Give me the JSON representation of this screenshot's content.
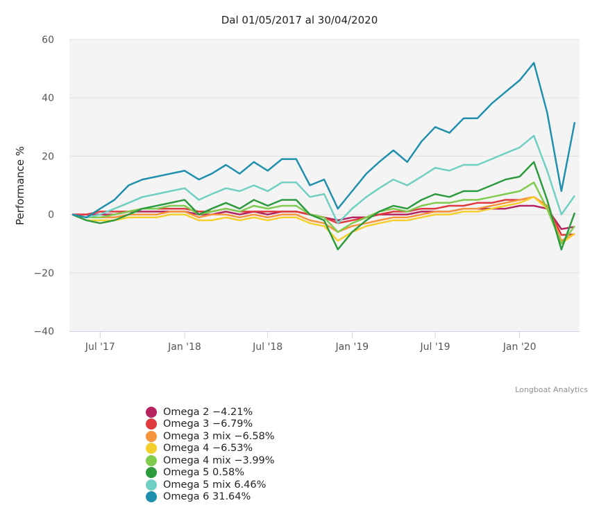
{
  "chart_data": {
    "type": "line",
    "title": "Dal 01/05/2017 al 30/04/2020",
    "xlabel": "",
    "ylabel": "Performance %",
    "ylim": [
      -40,
      60
    ],
    "yticks": [
      60,
      40,
      20,
      0,
      -20,
      -40
    ],
    "ytick_labels": [
      "60",
      "40",
      "20",
      "0",
      "−20",
      "−40"
    ],
    "xlim": [
      "2017-05-01",
      "2020-04-30"
    ],
    "xticks": [
      {
        "date": "2017-07-01",
        "label": "Jul '17"
      },
      {
        "date": "2018-01-01",
        "label": "Jan '18"
      },
      {
        "date": "2018-07-01",
        "label": "Jul '18"
      },
      {
        "date": "2019-01-01",
        "label": "Jan '19"
      },
      {
        "date": "2019-07-01",
        "label": "Jul '19"
      },
      {
        "date": "2020-01-01",
        "label": "Jan '20"
      }
    ],
    "grid": true,
    "legend_position": "bottom",
    "x": [
      "2017-05-01",
      "2017-06-01",
      "2017-07-01",
      "2017-08-01",
      "2017-09-01",
      "2017-10-01",
      "2017-11-01",
      "2017-12-01",
      "2018-01-01",
      "2018-02-01",
      "2018-03-01",
      "2018-04-01",
      "2018-05-01",
      "2018-06-01",
      "2018-07-01",
      "2018-08-01",
      "2018-09-01",
      "2018-10-01",
      "2018-11-01",
      "2018-12-01",
      "2019-01-01",
      "2019-02-01",
      "2019-03-01",
      "2019-04-01",
      "2019-05-01",
      "2019-06-01",
      "2019-07-01",
      "2019-08-01",
      "2019-09-01",
      "2019-10-01",
      "2019-11-01",
      "2019-12-01",
      "2020-01-01",
      "2020-02-01",
      "2020-03-01",
      "2020-04-01",
      "2020-04-30"
    ],
    "series": [
      {
        "name": "Omega 2",
        "legend": "Omega 2 -4.21%",
        "color": "#b5245f",
        "values": [
          0,
          0,
          0,
          0,
          1,
          1,
          1,
          1,
          1,
          0,
          0,
          1,
          0,
          1,
          0,
          1,
          1,
          0,
          -1,
          -2,
          -1,
          -1,
          0,
          0,
          0,
          1,
          1,
          1,
          2,
          2,
          2,
          2,
          3,
          3,
          2,
          -5,
          -4.21
        ]
      },
      {
        "name": "Omega 3",
        "legend": "Omega 3 -6.79%",
        "color": "#e0393e",
        "values": [
          0,
          0,
          1,
          1,
          1,
          2,
          2,
          2,
          2,
          1,
          1,
          2,
          1,
          1,
          1,
          1,
          1,
          0,
          -1,
          -3,
          -2,
          -1,
          0,
          1,
          1,
          2,
          2,
          3,
          3,
          4,
          4,
          5,
          5,
          6,
          3,
          -7,
          -6.79
        ]
      },
      {
        "name": "Omega 3 mix",
        "legend": "Omega 3 mix -6.58%",
        "color": "#f7943c",
        "values": [
          0,
          -1,
          -1,
          -1,
          0,
          0,
          0,
          1,
          1,
          -1,
          0,
          0,
          -1,
          0,
          -1,
          0,
          0,
          -2,
          -3,
          -6,
          -4,
          -3,
          -2,
          -1,
          -1,
          0,
          1,
          1,
          2,
          2,
          3,
          4,
          5,
          6,
          3,
          -9,
          -6.58
        ]
      },
      {
        "name": "Omega 4",
        "legend": "Omega 4 -6.53%",
        "color": "#f5cf2e",
        "values": [
          0,
          -2,
          -2,
          -2,
          -1,
          -1,
          -1,
          0,
          0,
          -2,
          -2,
          -1,
          -2,
          -1,
          -2,
          -1,
          -1,
          -3,
          -4,
          -9,
          -6,
          -4,
          -3,
          -2,
          -2,
          -1,
          0,
          0,
          1,
          1,
          2,
          3,
          4,
          6,
          2,
          -10,
          -6.53
        ]
      },
      {
        "name": "Omega 4 mix",
        "legend": "Omega 4 mix -3.99%",
        "color": "#7fcb4e",
        "values": [
          0,
          -1,
          -1,
          0,
          1,
          2,
          2,
          3,
          3,
          0,
          1,
          2,
          1,
          3,
          2,
          3,
          3,
          0,
          -1,
          -6,
          -3,
          -1,
          1,
          2,
          1,
          3,
          4,
          4,
          5,
          5,
          6,
          7,
          8,
          11,
          2,
          -10,
          -3.99
        ]
      },
      {
        "name": "Omega 5",
        "legend": "Omega 5 0.58%",
        "color": "#2e9a3e",
        "values": [
          0,
          -2,
          -3,
          -2,
          0,
          2,
          3,
          4,
          5,
          0,
          2,
          4,
          2,
          5,
          3,
          5,
          5,
          0,
          -2,
          -12,
          -6,
          -2,
          1,
          3,
          2,
          5,
          7,
          6,
          8,
          8,
          10,
          12,
          13,
          18,
          5,
          -12,
          0.58
        ]
      },
      {
        "name": "Omega 5 mix",
        "legend": "Omega 5 mix 6.46%",
        "color": "#6fcfc2",
        "values": [
          0,
          -1,
          0,
          2,
          4,
          6,
          7,
          8,
          9,
          5,
          7,
          9,
          8,
          10,
          8,
          11,
          11,
          6,
          7,
          -3,
          2,
          6,
          9,
          12,
          10,
          13,
          16,
          15,
          17,
          17,
          19,
          21,
          23,
          27,
          15,
          0,
          6.46
        ]
      },
      {
        "name": "Omega 6",
        "legend": "Omega 6 31.64%",
        "color": "#1f8fad",
        "values": [
          0,
          -1,
          2,
          5,
          10,
          12,
          13,
          14,
          15,
          12,
          14,
          17,
          14,
          18,
          15,
          19,
          19,
          10,
          12,
          2,
          8,
          14,
          18,
          22,
          18,
          25,
          30,
          28,
          33,
          33,
          38,
          42,
          46,
          52,
          35,
          8,
          31.64
        ]
      }
    ]
  },
  "credits": "Longboat Analytics"
}
